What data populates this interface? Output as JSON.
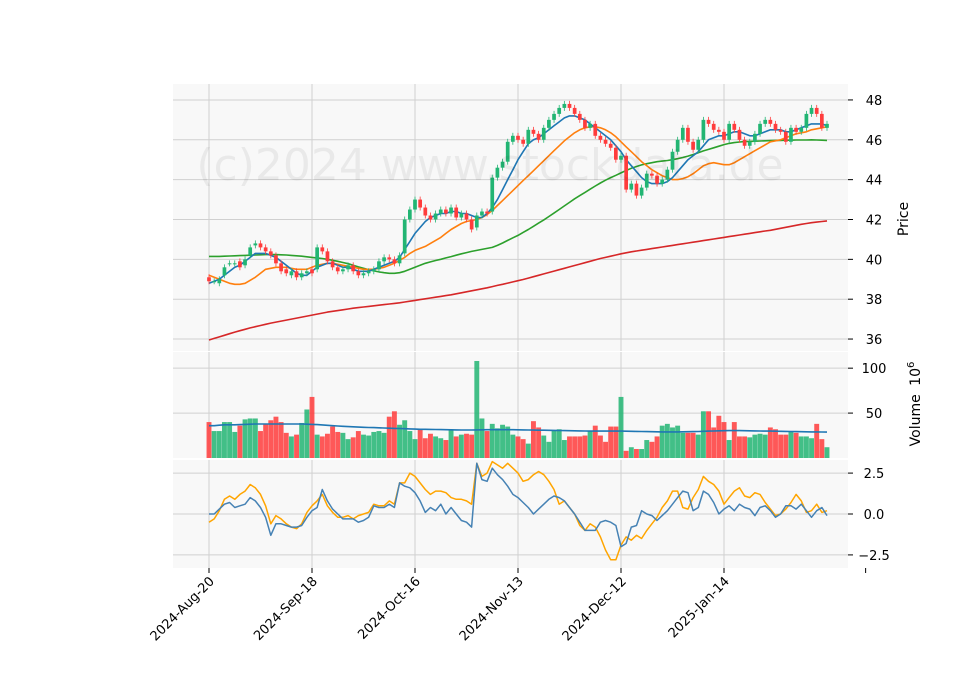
{
  "chart_data": {
    "type": "candlestick",
    "watermark": "(c)2024 www.stockdata.de",
    "colors": {
      "up": "#22b573",
      "down": "#ff3c3c",
      "ma_short": "#1f77b4",
      "ma_mid": "#ff7f0e",
      "ma_long": "#2ca02c",
      "ma_200": "#d62728",
      "volume_ma": "#1f77b4",
      "osc_fast": "#ffa500",
      "osc_slow": "#4682b4",
      "panel_bg": "#f8f8f8",
      "grid": "#d0d0d0"
    },
    "x_labels": [
      "2024-Aug-20",
      "2024-Sep-18",
      "2024-Oct-16",
      "2024-Nov-13",
      "2024-Dec-12",
      "2025-Jan-14"
    ],
    "x_label_index": [
      0,
      20,
      40,
      60,
      80,
      100
    ],
    "price_panel": {
      "ylabel": "Price",
      "yticks": [
        36,
        38,
        40,
        42,
        44,
        46,
        48
      ],
      "ylim": [
        35.4,
        48.8
      ],
      "close": [
        38.9,
        38.9,
        39.0,
        39.6,
        39.8,
        39.8,
        39.6,
        40.0,
        40.6,
        40.8,
        40.6,
        40.4,
        40.2,
        39.8,
        39.4,
        39.3,
        39.4,
        39.1,
        39.3,
        39.4,
        39.3,
        40.6,
        40.4,
        39.9,
        39.6,
        39.4,
        39.5,
        39.7,
        39.4,
        39.2,
        39.3,
        39.4,
        39.5,
        39.9,
        40.1,
        40.0,
        39.8,
        40.2,
        42.0,
        42.5,
        43.0,
        42.6,
        42.2,
        42.0,
        42.3,
        42.5,
        42.3,
        42.6,
        42.1,
        42.3,
        42.0,
        41.5,
        42.2,
        42.4,
        42.3,
        44.1,
        44.6,
        44.9,
        45.9,
        46.2,
        46.0,
        45.8,
        46.5,
        46.3,
        46.0,
        46.6,
        47.0,
        47.3,
        47.6,
        47.8,
        47.6,
        47.3,
        47.0,
        46.6,
        46.8,
        46.2,
        46.0,
        45.8,
        45.6,
        45.0,
        45.2,
        43.5,
        43.8,
        43.2,
        43.6,
        44.3,
        44.2,
        43.8,
        44.0,
        44.5,
        45.4,
        46.0,
        46.6,
        45.9,
        45.5,
        46.0,
        47.0,
        46.8,
        46.5,
        46.4,
        46.0,
        46.8,
        46.5,
        46.0,
        45.7,
        45.9,
        46.3,
        46.8,
        47.0,
        46.8,
        46.5,
        46.4,
        45.9,
        46.6,
        46.4,
        46.6,
        47.3,
        47.6,
        47.3,
        46.6,
        46.8
      ],
      "open": [
        39.1,
        38.9,
        38.8,
        39.2,
        39.8,
        39.8,
        39.9,
        39.7,
        40.2,
        40.7,
        40.8,
        40.6,
        40.4,
        40.2,
        39.8,
        39.5,
        39.2,
        39.4,
        39.1,
        39.3,
        39.5,
        39.5,
        40.6,
        40.4,
        39.9,
        39.6,
        39.4,
        39.5,
        39.7,
        39.4,
        39.2,
        39.3,
        39.4,
        39.5,
        39.9,
        40.1,
        40.0,
        39.8,
        40.3,
        42.0,
        42.5,
        43.0,
        42.6,
        42.2,
        42.0,
        42.3,
        42.5,
        42.3,
        42.6,
        42.1,
        42.3,
        42.0,
        41.6,
        42.2,
        42.4,
        42.4,
        44.1,
        44.6,
        44.9,
        45.9,
        46.2,
        46.0,
        45.8,
        46.5,
        46.3,
        46.0,
        46.6,
        47.0,
        47.3,
        47.6,
        47.8,
        47.6,
        47.3,
        47.0,
        46.6,
        46.8,
        46.2,
        46.0,
        45.8,
        45.6,
        45.0,
        45.2,
        43.5,
        43.8,
        43.2,
        43.6,
        44.3,
        44.2,
        43.8,
        44.0,
        44.5,
        45.4,
        46.0,
        46.6,
        45.9,
        45.5,
        46.0,
        47.0,
        46.8,
        46.5,
        46.4,
        46.0,
        46.8,
        46.5,
        46.0,
        45.7,
        45.9,
        46.3,
        46.8,
        47.0,
        46.8,
        46.5,
        46.4,
        45.9,
        46.6,
        46.4,
        46.6,
        47.3,
        47.6,
        47.3,
        46.6
      ],
      "ma_short": [
        38.8,
        38.9,
        39.0,
        39.2,
        39.4,
        39.6,
        39.7,
        39.9,
        40.1,
        40.3,
        40.3,
        40.3,
        40.2,
        40.1,
        39.9,
        39.7,
        39.5,
        39.3,
        39.2,
        39.2,
        39.4,
        39.6,
        39.7,
        39.8,
        39.8,
        39.7,
        39.6,
        39.6,
        39.5,
        39.4,
        39.4,
        39.4,
        39.5,
        39.6,
        39.7,
        39.8,
        39.9,
        40.1,
        40.5,
        40.9,
        41.3,
        41.6,
        41.9,
        42.1,
        42.2,
        42.3,
        42.3,
        42.4,
        42.4,
        42.3,
        42.3,
        42.2,
        42.1,
        42.1,
        42.3,
        42.6,
        43.0,
        43.5,
        44.0,
        44.5,
        45.0,
        45.4,
        45.8,
        46.0,
        46.1,
        46.3,
        46.5,
        46.7,
        46.9,
        47.1,
        47.2,
        47.2,
        47.1,
        47.0,
        46.8,
        46.6,
        46.4,
        46.2,
        46.0,
        45.7,
        45.4,
        45.0,
        44.7,
        44.4,
        44.1,
        43.9,
        43.8,
        43.8,
        43.8,
        43.9,
        44.1,
        44.4,
        44.7,
        45.0,
        45.2,
        45.4,
        45.7,
        46.0,
        46.1,
        46.2,
        46.2,
        46.3,
        46.4,
        46.4,
        46.3,
        46.2,
        46.2,
        46.3,
        46.4,
        46.5,
        46.5,
        46.5,
        46.4,
        46.4,
        46.5,
        46.6,
        46.7,
        46.8,
        46.8,
        46.8,
        46.7
      ],
      "ma_mid": [
        39.2,
        39.1,
        39.0,
        38.9,
        38.8,
        38.75,
        38.75,
        38.8,
        38.95,
        39.1,
        39.3,
        39.5,
        39.55,
        39.6,
        39.6,
        39.6,
        39.55,
        39.5,
        39.5,
        39.5,
        39.6,
        39.7,
        39.75,
        39.8,
        39.8,
        39.75,
        39.7,
        39.65,
        39.6,
        39.55,
        39.5,
        39.5,
        39.5,
        39.55,
        39.6,
        39.7,
        39.8,
        39.95,
        40.1,
        40.3,
        40.45,
        40.55,
        40.65,
        40.8,
        40.95,
        41.1,
        41.3,
        41.5,
        41.65,
        41.8,
        41.9,
        41.95,
        42.0,
        42.1,
        42.25,
        42.45,
        42.7,
        42.95,
        43.2,
        43.45,
        43.7,
        43.95,
        44.2,
        44.45,
        44.7,
        44.95,
        45.2,
        45.45,
        45.7,
        45.95,
        46.15,
        46.35,
        46.5,
        46.6,
        46.65,
        46.65,
        46.6,
        46.5,
        46.35,
        46.15,
        45.9,
        45.65,
        45.4,
        45.15,
        44.9,
        44.7,
        44.5,
        44.35,
        44.2,
        44.1,
        44.0,
        44.0,
        44.05,
        44.15,
        44.3,
        44.5,
        44.7,
        44.8,
        44.85,
        44.8,
        44.75,
        44.75,
        44.85,
        45.0,
        45.15,
        45.3,
        45.45,
        45.6,
        45.75,
        45.9,
        45.95,
        46.0,
        46.1,
        46.2,
        46.3,
        46.35,
        46.4,
        46.5,
        46.55,
        46.6,
        46.65
      ],
      "ma_long": [
        40.15,
        40.15,
        40.15,
        40.16,
        40.17,
        40.18,
        40.19,
        40.2,
        40.21,
        40.22,
        40.23,
        40.24,
        40.24,
        40.24,
        40.23,
        40.22,
        40.2,
        40.18,
        40.16,
        40.13,
        40.1,
        40.07,
        40.04,
        40.0,
        39.95,
        39.9,
        39.84,
        39.78,
        39.7,
        39.62,
        39.55,
        39.48,
        39.42,
        39.37,
        39.33,
        39.3,
        39.3,
        39.33,
        39.4,
        39.5,
        39.6,
        39.7,
        39.8,
        39.87,
        39.94,
        40.0,
        40.07,
        40.14,
        40.21,
        40.28,
        40.34,
        40.4,
        40.45,
        40.5,
        40.55,
        40.6,
        40.7,
        40.82,
        40.95,
        41.08,
        41.2,
        41.35,
        41.5,
        41.66,
        41.82,
        41.98,
        42.15,
        42.32,
        42.5,
        42.68,
        42.86,
        43.04,
        43.2,
        43.36,
        43.52,
        43.68,
        43.83,
        43.97,
        44.1,
        44.22,
        44.34,
        44.46,
        44.57,
        44.66,
        44.74,
        44.8,
        44.85,
        44.9,
        44.93,
        44.96,
        45.0,
        45.05,
        45.11,
        45.18,
        45.26,
        45.35,
        45.44,
        45.52,
        45.6,
        45.68,
        45.76,
        45.82,
        45.86,
        45.89,
        45.91,
        45.92,
        45.93,
        45.94,
        45.95,
        45.96,
        45.97,
        45.97,
        45.98,
        45.98,
        45.99,
        45.99,
        45.99,
        46.0,
        45.99,
        45.98,
        45.97
      ],
      "ma_200": [
        35.95,
        36.03,
        36.11,
        36.19,
        36.27,
        36.35,
        36.42,
        36.49,
        36.56,
        36.62,
        36.68,
        36.74,
        36.8,
        36.85,
        36.9,
        36.95,
        37.0,
        37.05,
        37.1,
        37.15,
        37.2,
        37.25,
        37.3,
        37.35,
        37.39,
        37.43,
        37.47,
        37.51,
        37.55,
        37.58,
        37.61,
        37.64,
        37.67,
        37.7,
        37.73,
        37.76,
        37.79,
        37.82,
        37.86,
        37.9,
        37.94,
        37.98,
        38.02,
        38.06,
        38.1,
        38.14,
        38.18,
        38.22,
        38.27,
        38.32,
        38.37,
        38.42,
        38.47,
        38.52,
        38.57,
        38.63,
        38.69,
        38.75,
        38.81,
        38.87,
        38.93,
        38.99,
        39.06,
        39.13,
        39.2,
        39.27,
        39.34,
        39.41,
        39.48,
        39.55,
        39.62,
        39.69,
        39.76,
        39.83,
        39.9,
        39.97,
        40.04,
        40.1,
        40.16,
        40.22,
        40.28,
        40.33,
        40.38,
        40.42,
        40.46,
        40.5,
        40.54,
        40.58,
        40.62,
        40.66,
        40.7,
        40.74,
        40.78,
        40.82,
        40.86,
        40.9,
        40.94,
        40.98,
        41.02,
        41.06,
        41.1,
        41.14,
        41.18,
        41.22,
        41.26,
        41.3,
        41.34,
        41.38,
        41.42,
        41.46,
        41.51,
        41.56,
        41.61,
        41.66,
        41.71,
        41.76,
        41.8,
        41.84,
        41.87,
        41.9,
        41.93
      ]
    },
    "volume_panel": {
      "ylabel": "Volume",
      "ylabel_exponent": "10^6",
      "yticks": [
        50,
        100
      ],
      "ylim": [
        0,
        118
      ],
      "values": [
        40,
        30,
        30,
        40,
        40,
        29,
        36,
        43,
        44,
        44,
        30,
        38,
        42,
        46,
        40,
        28,
        24,
        26,
        39,
        54,
        68,
        26,
        24,
        27,
        35,
        29,
        28,
        21,
        23,
        30,
        26,
        25,
        29,
        30,
        28,
        46,
        52,
        37,
        42,
        30,
        21,
        32,
        22,
        27,
        24,
        22,
        20,
        32,
        24,
        26,
        27,
        26,
        108,
        44,
        30,
        38,
        33,
        37,
        35,
        26,
        24,
        21,
        16,
        41,
        34,
        25,
        18,
        31,
        32,
        20,
        24,
        24,
        24,
        25,
        30,
        36,
        25,
        18,
        35,
        35,
        68,
        8,
        12,
        10,
        10,
        20,
        18,
        24,
        36,
        38,
        34,
        36,
        28,
        28,
        28,
        26,
        52,
        52,
        34,
        47,
        40,
        20,
        40,
        24,
        24,
        23,
        26,
        27,
        26,
        34,
        32,
        26,
        26,
        30,
        28,
        24,
        24,
        22,
        38,
        21,
        12
      ],
      "ma": [
        36,
        36,
        36.5,
        37,
        37,
        37,
        37.2,
        37.4,
        37.6,
        37.8,
        37.8,
        37.8,
        37.8,
        37.8,
        37.8,
        37.8,
        37.8,
        37.8,
        37.8,
        37.6,
        37.4,
        37.2,
        36.8,
        36.4,
        36.0,
        35.6,
        35.3,
        35.0,
        34.7,
        34.4,
        34.2,
        34.0,
        33.8,
        33.6,
        33.4,
        33.2,
        33.0,
        32.8,
        32.6,
        32.4,
        32.2,
        32.0,
        31.9,
        31.8,
        31.7,
        31.6,
        31.5,
        31.4,
        31.3,
        31.2,
        31.2,
        31.2,
        31.3,
        31.4,
        31.5,
        31.5,
        31.5,
        31.5,
        31.5,
        31.5,
        31.4,
        31.3,
        31.2,
        31.1,
        31.0,
        30.9,
        30.8,
        30.7,
        30.6,
        30.5,
        30.4,
        30.3,
        30.2,
        30.1,
        30.0,
        30.0,
        30.0,
        30.0,
        30.0,
        30.0,
        29.9,
        29.8,
        29.7,
        29.6,
        29.5,
        29.4,
        29.3,
        29.2,
        29.1,
        29.0,
        29.0,
        29.1,
        29.2,
        29.3,
        29.4,
        29.5,
        29.7,
        29.9,
        30.1,
        30.3,
        30.4,
        30.5,
        30.5,
        30.5,
        30.4,
        30.3,
        30.2,
        30.1,
        30.0,
        29.9,
        29.8,
        29.7,
        29.6,
        29.5,
        29.4,
        29.3,
        29.2,
        29.1,
        29.0,
        28.9,
        28.8
      ]
    },
    "osc_panel": {
      "yticks": [
        -2.5,
        0.0,
        2.5
      ],
      "ytick_labels": [
        "−2.5",
        "0.0",
        "2.5"
      ],
      "ylim": [
        -3.3,
        3.3
      ],
      "fast": [
        -0.5,
        -0.3,
        0.2,
        0.9,
        1.1,
        0.9,
        1.2,
        1.4,
        1.8,
        1.6,
        1.2,
        0.5,
        -0.6,
        -0.1,
        -0.3,
        -0.6,
        -0.8,
        -0.9,
        -0.6,
        0.1,
        0.5,
        0.8,
        1.2,
        0.5,
        0.1,
        -0.2,
        -0.2,
        -0.1,
        -0.3,
        -0.1,
        0.0,
        0.1,
        0.6,
        0.5,
        0.5,
        0.8,
        0.6,
        1.9,
        1.9,
        2.5,
        2.3,
        1.9,
        1.5,
        1.2,
        1.4,
        1.4,
        1.3,
        1.0,
        0.9,
        0.9,
        0.8,
        0.6,
        3.1,
        2.3,
        2.5,
        3.2,
        3.0,
        2.8,
        3.1,
        2.8,
        2.5,
        2.0,
        2.1,
        2.4,
        2.6,
        2.4,
        2.0,
        1.5,
        0.6,
        0.8,
        0.4,
        0.0,
        -0.7,
        -1.0,
        -0.6,
        -0.8,
        -1.4,
        -2.2,
        -2.8,
        -2.8,
        -1.9,
        -1.4,
        -1.6,
        -1.3,
        -1.5,
        -1.0,
        -0.6,
        -0.2,
        0.4,
        0.8,
        1.4,
        1.4,
        0.4,
        0.3,
        1.0,
        1.5,
        2.3,
        2.0,
        1.8,
        1.4,
        0.6,
        1.0,
        1.4,
        1.6,
        1.1,
        1.0,
        1.3,
        1.2,
        0.7,
        0.3,
        -0.1,
        0.0,
        0.3,
        0.7,
        1.2,
        0.8,
        0.1,
        0.2,
        0.6,
        0.1,
        0.2
      ],
      "slow": [
        0.0,
        0.0,
        0.3,
        0.6,
        0.7,
        0.4,
        0.5,
        0.6,
        1.0,
        0.8,
        0.4,
        -0.2,
        -1.3,
        -0.6,
        -0.6,
        -0.7,
        -0.8,
        -0.8,
        -0.7,
        -0.2,
        0.2,
        0.4,
        1.5,
        0.8,
        0.3,
        0.0,
        -0.3,
        -0.3,
        -0.3,
        -0.5,
        -0.4,
        -0.2,
        0.5,
        0.4,
        0.4,
        0.6,
        0.4,
        1.9,
        1.7,
        1.6,
        1.3,
        0.8,
        0.1,
        0.4,
        0.2,
        0.6,
        0.0,
        0.4,
        0.0,
        -0.4,
        -0.5,
        -0.8,
        3.1,
        2.1,
        2.0,
        2.8,
        2.4,
        2.1,
        1.7,
        1.2,
        1.0,
        0.7,
        0.4,
        0.0,
        0.3,
        0.6,
        0.9,
        1.1,
        1.0,
        0.8,
        0.4,
        0.0,
        -0.5,
        -1.0,
        -1.0,
        -1.0,
        -0.5,
        -0.4,
        -0.5,
        -0.7,
        -2.0,
        -1.8,
        -0.8,
        -0.7,
        0.2,
        0.0,
        -0.1,
        -0.4,
        -0.1,
        0.2,
        0.6,
        1.0,
        1.4,
        1.3,
        0.2,
        0.4,
        1.4,
        1.2,
        0.7,
        0.0,
        0.3,
        0.5,
        0.2,
        0.6,
        0.4,
        0.3,
        -0.1,
        0.4,
        0.5,
        0.2,
        -0.2,
        0.0,
        0.5,
        0.5,
        0.3,
        0.6,
        0.2,
        -0.2,
        0.2,
        0.4,
        -0.1
      ]
    }
  }
}
